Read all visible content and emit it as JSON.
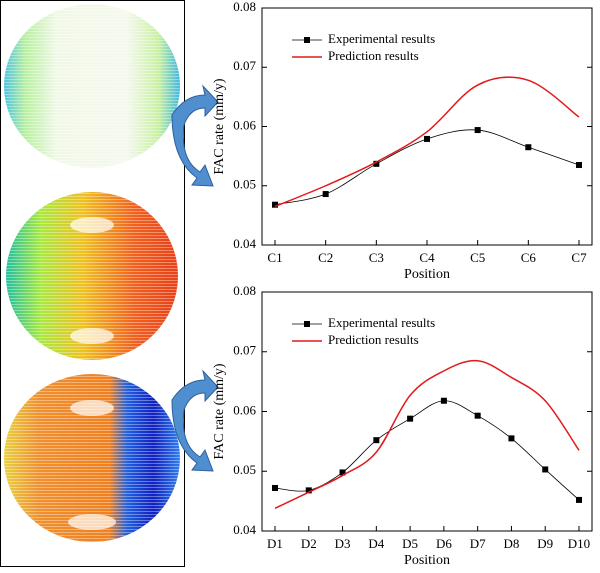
{
  "chart_data": [
    {
      "type": "line",
      "xlabel": "Position",
      "ylabel": "FAC rate (mm/y)",
      "categories": [
        "C1",
        "C2",
        "C3",
        "C4",
        "C5",
        "C6",
        "C7"
      ],
      "series": [
        {
          "name": "Experimental results",
          "color": "#000000",
          "marker": "square",
          "values": [
            0.0468,
            0.0486,
            0.0537,
            0.0579,
            0.0594,
            0.0565,
            0.0535
          ]
        },
        {
          "name": "Prediction results",
          "color": "#e31a1c",
          "values": [
            0.0465,
            0.05,
            0.054,
            0.0591,
            0.067,
            0.0678,
            0.0616
          ]
        }
      ],
      "ylim": [
        0.04,
        0.08
      ],
      "yticks": [
        0.04,
        0.05,
        0.06,
        0.07,
        0.08
      ],
      "legend": "upper left"
    },
    {
      "type": "line",
      "xlabel": "Position",
      "ylabel": "FAC rate (mm/y)",
      "categories": [
        "D1",
        "D2",
        "D3",
        "D4",
        "D5",
        "D6",
        "D7",
        "D8",
        "D9",
        "D10"
      ],
      "series": [
        {
          "name": "Experimental results",
          "color": "#000000",
          "marker": "square",
          "values": [
            0.0472,
            0.0468,
            0.0498,
            0.0552,
            0.0588,
            0.0618,
            0.0593,
            0.0555,
            0.0503,
            0.0452
          ]
        },
        {
          "name": "Prediction results",
          "color": "#e31a1c",
          "values": [
            0.0438,
            0.0465,
            0.0493,
            0.0532,
            0.0627,
            0.0668,
            0.0685,
            0.0657,
            0.0618,
            0.0535
          ]
        }
      ],
      "ylim": [
        0.04,
        0.08
      ],
      "yticks": [
        0.04,
        0.05,
        0.06,
        0.07,
        0.08
      ],
      "legend": "upper left"
    }
  ]
}
